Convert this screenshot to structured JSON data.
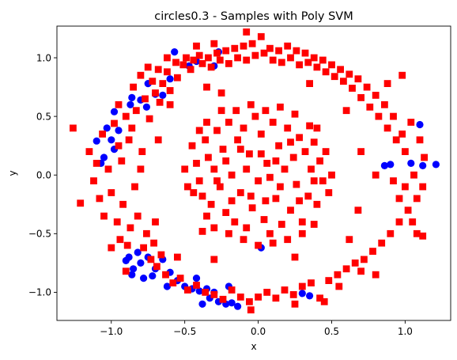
{
  "chart_data": {
    "type": "scatter",
    "title": "circles0.3 - Samples with Poly SVM",
    "xlabel": "x",
    "ylabel": "y",
    "xlim": [
      -1.37,
      1.31
    ],
    "ylim": [
      -1.24,
      1.27
    ],
    "xticks": [
      -1.0,
      -0.5,
      0.0,
      0.5,
      1.0
    ],
    "xtick_labels": [
      "−1.0",
      "−0.5",
      "0.0",
      "0.5",
      "1.0"
    ],
    "yticks": [
      -1.0,
      -0.5,
      0.0,
      0.5,
      1.0
    ],
    "ytick_labels": [
      "−1.0",
      "−0.5",
      "0.0",
      "0.5",
      "1.0"
    ],
    "grid": false,
    "colors": {
      "class_a": "#0000ff",
      "class_b": "#ff0000"
    },
    "series": [
      {
        "marker": "circle",
        "color": "#0000ff",
        "points": [
          [
            -0.57,
            1.05
          ],
          [
            -0.47,
            0.93
          ],
          [
            -0.42,
            0.97
          ],
          [
            -0.3,
            0.93
          ],
          [
            -0.27,
            1.05
          ],
          [
            -0.75,
            0.78
          ],
          [
            -0.7,
            0.69
          ],
          [
            -0.6,
            0.82
          ],
          [
            -0.8,
            0.64
          ],
          [
            -0.86,
            0.66
          ],
          [
            -0.87,
            0.6
          ],
          [
            -0.76,
            0.58
          ],
          [
            -0.65,
            0.68
          ],
          [
            -0.98,
            0.54
          ],
          [
            -1.0,
            0.3
          ],
          [
            -1.03,
            0.4
          ],
          [
            -0.95,
            0.38
          ],
          [
            -1.05,
            0.15
          ],
          [
            -1.1,
            0.29
          ],
          [
            -1.07,
            0.1
          ],
          [
            -0.98,
            0.22
          ],
          [
            1.1,
            0.43
          ],
          [
            1.12,
            0.08
          ],
          [
            1.21,
            0.09
          ],
          [
            1.04,
            0.1
          ],
          [
            0.86,
            0.08
          ],
          [
            0.9,
            0.09
          ],
          [
            -0.88,
            -0.7
          ],
          [
            -0.8,
            -0.75
          ],
          [
            -0.85,
            -0.8
          ],
          [
            -0.75,
            -0.7
          ],
          [
            -0.7,
            -0.8
          ],
          [
            -0.65,
            -0.72
          ],
          [
            -0.78,
            -0.88
          ],
          [
            -0.86,
            -0.85
          ],
          [
            -0.72,
            -0.86
          ],
          [
            -0.6,
            -0.83
          ],
          [
            -0.9,
            -0.73
          ],
          [
            -0.82,
            -0.66
          ],
          [
            -0.55,
            -0.9
          ],
          [
            -0.5,
            -0.95
          ],
          [
            -0.45,
            -0.97
          ],
          [
            -0.4,
            -0.99
          ],
          [
            -0.35,
            -0.97
          ],
          [
            -0.3,
            -1.0
          ],
          [
            -0.27,
            -1.08
          ],
          [
            -0.22,
            -1.1
          ],
          [
            -0.18,
            -1.09
          ],
          [
            -0.14,
            -1.12
          ],
          [
            -0.38,
            -1.1
          ],
          [
            -0.33,
            -1.05
          ],
          [
            -0.2,
            -0.95
          ],
          [
            0.02,
            -0.62
          ],
          [
            0.35,
            -1.03
          ],
          [
            0.3,
            -1.01
          ],
          [
            -0.42,
            -0.88
          ],
          [
            -0.62,
            -0.95
          ]
        ]
      },
      {
        "marker": "square",
        "color": "#ff0000",
        "points": [
          [
            -1.26,
            0.4
          ],
          [
            -1.21,
            -0.24
          ],
          [
            -1.15,
            0.2
          ],
          [
            -1.12,
            -0.05
          ],
          [
            -1.1,
            0.1
          ],
          [
            -1.08,
            -0.2
          ],
          [
            -1.06,
            0.35
          ],
          [
            -1.05,
            -0.35
          ],
          [
            -1.02,
            0.05
          ],
          [
            -1.0,
            -0.15
          ],
          [
            -0.98,
            0.44
          ],
          [
            -0.96,
            -0.4
          ],
          [
            -0.95,
            0.25
          ],
          [
            -0.94,
            -0.55
          ],
          [
            -0.93,
            0.12
          ],
          [
            -0.92,
            -0.25
          ],
          [
            -0.9,
            0.5
          ],
          [
            -0.89,
            -0.6
          ],
          [
            -0.88,
            0.3
          ],
          [
            -0.87,
            -0.45
          ],
          [
            -0.86,
            0.4
          ],
          [
            -0.85,
            0.75
          ],
          [
            -0.84,
            -0.1
          ],
          [
            -0.83,
            0.55
          ],
          [
            -0.82,
            -0.35
          ],
          [
            -0.8,
            0.85
          ],
          [
            -0.79,
            0.2
          ],
          [
            -0.78,
            -0.62
          ],
          [
            -0.77,
            0.65
          ],
          [
            -0.76,
            -0.5
          ],
          [
            -0.75,
            0.92
          ],
          [
            -0.74,
            0.48
          ],
          [
            -0.73,
            -0.72
          ],
          [
            -0.72,
            0.8
          ],
          [
            -0.71,
            -0.58
          ],
          [
            -0.7,
            0.7
          ],
          [
            -0.69,
            -0.78
          ],
          [
            -0.68,
            0.9
          ],
          [
            -0.67,
            0.62
          ],
          [
            -0.66,
            -0.68
          ],
          [
            -0.65,
            0.78
          ],
          [
            -0.63,
            -0.85
          ],
          [
            -0.62,
            0.88
          ],
          [
            -0.6,
            0.72
          ],
          [
            -0.58,
            -0.92
          ],
          [
            -0.56,
            0.96
          ],
          [
            -0.55,
            0.83
          ],
          [
            -0.53,
            -0.88
          ],
          [
            -0.51,
            0.94
          ],
          [
            -0.49,
            1.0
          ],
          [
            -0.48,
            -0.98
          ],
          [
            -0.46,
            0.9
          ],
          [
            -0.44,
            0.98
          ],
          [
            -0.42,
            -0.94
          ],
          [
            -0.4,
            1.02
          ],
          [
            -0.38,
            0.95
          ],
          [
            -0.36,
            -1.0
          ],
          [
            -0.34,
            1.0
          ],
          [
            -0.32,
            0.92
          ],
          [
            -0.3,
            -1.02
          ],
          [
            -0.28,
            1.04
          ],
          [
            -0.26,
            0.98
          ],
          [
            -0.24,
            -1.06
          ],
          [
            -0.22,
            1.06
          ],
          [
            -0.2,
            0.95
          ],
          [
            -0.18,
            -0.98
          ],
          [
            -0.16,
            1.08
          ],
          [
            -0.14,
            1.0
          ],
          [
            -0.12,
            -1.04
          ],
          [
            -0.1,
            1.1
          ],
          [
            -0.08,
            0.98
          ],
          [
            -0.06,
            -1.08
          ],
          [
            -0.04,
            1.12
          ],
          [
            -0.02,
            1.02
          ],
          [
            0.0,
            -1.04
          ],
          [
            0.02,
            1.18
          ],
          [
            0.04,
            1.04
          ],
          [
            0.06,
            -1.0
          ],
          [
            0.08,
            1.08
          ],
          [
            0.1,
            0.98
          ],
          [
            0.12,
            -1.05
          ],
          [
            0.14,
            1.06
          ],
          [
            0.16,
            0.96
          ],
          [
            0.18,
            -0.98
          ],
          [
            0.2,
            1.1
          ],
          [
            0.22,
            1.0
          ],
          [
            0.24,
            -1.02
          ],
          [
            0.26,
            1.06
          ],
          [
            0.28,
            0.94
          ],
          [
            0.3,
            -0.95
          ],
          [
            0.32,
            1.04
          ],
          [
            0.34,
            0.96
          ],
          [
            0.36,
            -0.92
          ],
          [
            0.38,
            1.0
          ],
          [
            0.4,
            0.92
          ],
          [
            0.42,
            -1.05
          ],
          [
            0.44,
            0.98
          ],
          [
            0.46,
            0.88
          ],
          [
            0.48,
            -0.9
          ],
          [
            0.5,
            0.94
          ],
          [
            0.52,
            0.84
          ],
          [
            0.54,
            -0.85
          ],
          [
            0.56,
            0.9
          ],
          [
            0.58,
            0.8
          ],
          [
            0.6,
            -0.8
          ],
          [
            0.62,
            0.86
          ],
          [
            0.64,
            0.74
          ],
          [
            0.66,
            -0.75
          ],
          [
            0.68,
            0.82
          ],
          [
            0.7,
            0.66
          ],
          [
            0.72,
            -0.72
          ],
          [
            0.74,
            0.75
          ],
          [
            0.76,
            0.58
          ],
          [
            0.78,
            -0.65
          ],
          [
            0.8,
            0.68
          ],
          [
            0.82,
            0.5
          ],
          [
            0.84,
            -0.58
          ],
          [
            0.86,
            0.6
          ],
          [
            0.88,
            0.4
          ],
          [
            0.9,
            -0.5
          ],
          [
            0.92,
            0.5
          ],
          [
            0.94,
            0.3
          ],
          [
            0.96,
            -0.4
          ],
          [
            0.98,
            0.35
          ],
          [
            1.0,
            0.2
          ],
          [
            1.02,
            -0.3
          ],
          [
            1.04,
            0.45
          ],
          [
            1.06,
            0.0
          ],
          [
            1.08,
            -0.2
          ],
          [
            1.1,
            0.3
          ],
          [
            1.12,
            -0.1
          ],
          [
            1.13,
            0.15
          ],
          [
            0.92,
            -0.05
          ],
          [
            0.96,
            -0.2
          ],
          [
            1.0,
            -0.1
          ],
          [
            1.05,
            -0.4
          ],
          [
            1.08,
            -0.5
          ],
          [
            1.12,
            -0.52
          ],
          [
            0.98,
            0.85
          ],
          [
            0.88,
            0.78
          ],
          [
            0.8,
            -0.85
          ],
          [
            0.7,
            -0.82
          ],
          [
            0.55,
            -0.95
          ],
          [
            0.45,
            -1.08
          ],
          [
            0.25,
            -1.1
          ],
          [
            -0.05,
            -1.15
          ],
          [
            -0.3,
            1.12
          ],
          [
            -0.62,
            1.0
          ],
          [
            -0.42,
            1.1
          ],
          [
            -0.08,
            1.22
          ],
          [
            -0.95,
            0.6
          ],
          [
            -1.0,
            -0.62
          ],
          [
            -0.9,
            -0.82
          ],
          [
            -0.6,
            0.6
          ],
          [
            -0.55,
            -0.7
          ],
          [
            -0.35,
            0.75
          ],
          [
            -0.3,
            -0.72
          ],
          [
            -0.25,
            0.7
          ],
          [
            0.25,
            -0.7
          ],
          [
            0.35,
            0.78
          ],
          [
            0.6,
            0.55
          ],
          [
            0.62,
            -0.55
          ],
          [
            -0.68,
            0.3
          ],
          [
            -0.7,
            -0.4
          ],
          [
            0.7,
            0.2
          ],
          [
            0.68,
            -0.3
          ],
          [
            -0.8,
            0.05
          ],
          [
            0.8,
            0.0
          ],
          [
            -0.45,
            0.25
          ],
          [
            -0.42,
            0.1
          ],
          [
            -0.4,
            -0.05
          ],
          [
            -0.38,
            -0.18
          ],
          [
            -0.36,
            0.3
          ],
          [
            -0.34,
            0.15
          ],
          [
            -0.32,
            -0.25
          ],
          [
            -0.3,
            0.05
          ],
          [
            -0.28,
            0.38
          ],
          [
            -0.26,
            -0.1
          ],
          [
            -0.24,
            0.22
          ],
          [
            -0.22,
            -0.32
          ],
          [
            -0.2,
            0.45
          ],
          [
            -0.18,
            0.0
          ],
          [
            -0.16,
            -0.4
          ],
          [
            -0.14,
            0.3
          ],
          [
            -0.12,
            -0.15
          ],
          [
            -0.1,
            0.4
          ],
          [
            -0.08,
            -0.45
          ],
          [
            -0.06,
            0.18
          ],
          [
            -0.04,
            -0.28
          ],
          [
            -0.02,
            0.5
          ],
          [
            0.0,
            -0.05
          ],
          [
            0.02,
            0.35
          ],
          [
            0.04,
            -0.38
          ],
          [
            0.06,
            0.1
          ],
          [
            0.08,
            -0.5
          ],
          [
            0.1,
            0.45
          ],
          [
            0.12,
            -0.2
          ],
          [
            0.14,
            0.25
          ],
          [
            0.16,
            -0.42
          ],
          [
            0.18,
            0.05
          ],
          [
            0.2,
            0.4
          ],
          [
            0.22,
            -0.3
          ],
          [
            0.24,
            0.15
          ],
          [
            0.26,
            -0.08
          ],
          [
            0.28,
            0.32
          ],
          [
            0.3,
            -0.4
          ],
          [
            0.32,
            0.2
          ],
          [
            0.34,
            -0.18
          ],
          [
            0.36,
            0.05
          ],
          [
            0.38,
            0.28
          ],
          [
            0.4,
            -0.25
          ],
          [
            0.42,
            0.12
          ],
          [
            0.44,
            -0.05
          ],
          [
            0.46,
            0.2
          ],
          [
            -0.44,
            -0.15
          ],
          [
            -0.4,
            0.38
          ],
          [
            -0.35,
            -0.35
          ],
          [
            -0.25,
            0.55
          ],
          [
            -0.15,
            0.55
          ],
          [
            -0.05,
            0.6
          ],
          [
            0.05,
            0.55
          ],
          [
            0.15,
            0.58
          ],
          [
            0.25,
            0.52
          ],
          [
            0.35,
            0.42
          ],
          [
            -0.1,
            -0.55
          ],
          [
            0.0,
            -0.6
          ],
          [
            0.1,
            -0.58
          ],
          [
            0.2,
            -0.55
          ],
          [
            0.3,
            -0.5
          ],
          [
            -0.2,
            -0.5
          ],
          [
            -0.3,
            -0.45
          ],
          [
            -0.5,
            0.05
          ],
          [
            -0.48,
            -0.1
          ],
          [
            0.48,
            -0.15
          ],
          [
            0.5,
            0.0
          ],
          [
            -0.22,
            0.12
          ],
          [
            -0.12,
            0.22
          ],
          [
            0.02,
            0.18
          ],
          [
            0.12,
            0.12
          ],
          [
            0.22,
            0.28
          ],
          [
            -0.18,
            -0.22
          ],
          [
            -0.05,
            -0.18
          ],
          [
            0.05,
            -0.22
          ],
          [
            0.15,
            -0.1
          ],
          [
            0.28,
            -0.22
          ],
          [
            -0.28,
            -0.05
          ],
          [
            0.38,
            -0.05
          ],
          [
            -0.08,
            0.05
          ],
          [
            0.08,
            -0.02
          ],
          [
            -0.35,
            0.45
          ],
          [
            0.4,
            0.4
          ],
          [
            -0.38,
            -0.48
          ],
          [
            0.38,
            -0.42
          ]
        ]
      }
    ]
  }
}
